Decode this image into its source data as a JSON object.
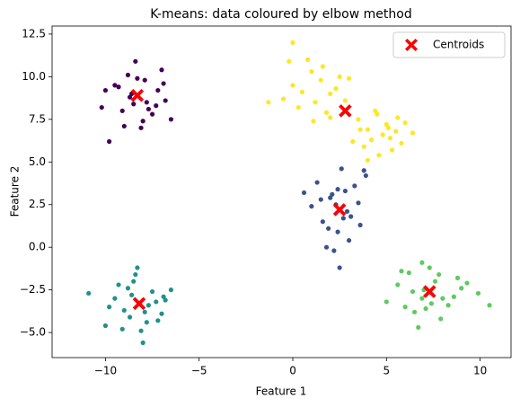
{
  "chart_data": {
    "type": "scatter",
    "title": "K-means: data coloured by elbow method",
    "xlabel": "Feature 1",
    "ylabel": "Feature 2",
    "xlim": [
      -12.85,
      11.65
    ],
    "ylim": [
      -6.47,
      12.97
    ],
    "xticks": [
      {
        "value": -10,
        "label": "−10"
      },
      {
        "value": -5,
        "label": "−5"
      },
      0,
      5,
      10
    ],
    "yticks": [
      {
        "value": -5,
        "label": "−5.0"
      },
      {
        "value": -2.5,
        "label": "−2.5"
      },
      {
        "value": 0,
        "label": "0.0"
      },
      {
        "value": 2.5,
        "label": "2.5"
      },
      {
        "value": 5,
        "label": "5.0"
      },
      {
        "value": 7.5,
        "label": "7.5"
      },
      {
        "value": 10,
        "label": "10.0"
      },
      {
        "value": 12.5,
        "label": "12.5"
      }
    ],
    "legend": "upper right",
    "series": [
      {
        "color": "#440154",
        "x": [
          -9.5,
          -8.8,
          -7.9,
          -7.2,
          -8.5,
          -9.1,
          -6.8,
          -8.0,
          -7.5,
          -10.2,
          -9.8,
          -8.3,
          -7.0,
          -6.5,
          -8.7,
          -9.3,
          -7.7,
          -8.1,
          -10.0,
          -6.9,
          -8.4,
          -7.3,
          -9.0,
          -8.6,
          -7.8
        ],
        "values": [
          9.5,
          10.1,
          9.8,
          9.2,
          8.4,
          8.0,
          8.6,
          7.4,
          7.8,
          8.2,
          6.2,
          9.9,
          10.4,
          7.5,
          8.8,
          9.4,
          8.1,
          7.0,
          9.2,
          9.6,
          10.9,
          8.3,
          7.1,
          9.0,
          8.5
        ]
      },
      {
        "color": "#21918c",
        "x": [
          -9.5,
          -8.8,
          -7.9,
          -7.2,
          -8.5,
          -9.1,
          -6.8,
          -8.0,
          -7.5,
          -10.9,
          -9.8,
          -8.3,
          -7.0,
          -6.5,
          -8.7,
          -9.3,
          -7.7,
          -8.1,
          -10.0,
          -6.9,
          -8.4,
          -7.3,
          -9.0,
          -8.6,
          -7.8
        ],
        "values": [
          -3.0,
          -2.4,
          -3.8,
          -4.3,
          -2.0,
          -4.8,
          -3.1,
          -5.6,
          -2.6,
          -2.7,
          -3.5,
          -1.2,
          -3.9,
          -2.5,
          -4.1,
          -2.2,
          -3.4,
          -4.9,
          -4.6,
          -2.9,
          -1.6,
          -3.2,
          -3.7,
          -2.8,
          -4.4
        ]
      },
      {
        "color": "#3b528b",
        "x": [
          1.3,
          2.0,
          2.8,
          3.5,
          1.6,
          2.4,
          3.1,
          1.0,
          2.2,
          3.8,
          2.6,
          1.9,
          3.3,
          2.9,
          1.5,
          2.1,
          3.0,
          2.5,
          3.6,
          1.8,
          2.3,
          2.7,
          0.6,
          3.9,
          2.4
        ],
        "values": [
          3.8,
          2.9,
          3.3,
          2.6,
          1.5,
          0.9,
          1.8,
          2.4,
          -0.2,
          4.5,
          4.6,
          1.1,
          3.6,
          2.1,
          2.8,
          3.1,
          0.4,
          -1.2,
          1.3,
          0.0,
          2.5,
          1.7,
          3.2,
          4.2,
          3.4
        ]
      },
      {
        "color": "#5ec962",
        "x": [
          5.6,
          6.2,
          6.9,
          7.6,
          8.3,
          9.0,
          6.5,
          7.3,
          8.0,
          5.0,
          10.5,
          9.9,
          6.0,
          7.0,
          7.8,
          8.6,
          6.7,
          7.4,
          8.8,
          6.4,
          7.9,
          5.8,
          9.3,
          7.1,
          6.9
        ],
        "values": [
          -2.2,
          -1.5,
          -3.0,
          -2.0,
          -3.4,
          -2.4,
          -3.8,
          -1.2,
          -3.0,
          -3.2,
          -3.4,
          -2.7,
          -3.5,
          -2.5,
          -1.6,
          -2.9,
          -4.7,
          -3.3,
          -1.8,
          -2.6,
          -4.2,
          -1.4,
          -2.1,
          -3.6,
          -0.9
        ]
      },
      {
        "color": "#fde725",
        "x": [
          0.0,
          0.5,
          1.0,
          1.5,
          2.0,
          2.5,
          -0.5,
          0.3,
          1.2,
          1.8,
          2.3,
          -1.3,
          0.8,
          1.6,
          2.8,
          3.0,
          -0.2,
          1.1,
          0.0,
          2.0,
          3.5,
          4.0,
          4.5,
          5.0,
          5.5,
          6.0,
          3.8,
          4.2,
          4.8,
          5.3,
          5.8,
          6.4,
          3.2,
          4.6,
          5.1,
          4.0,
          5.6,
          3.6,
          4.4,
          5.2
        ],
        "values": [
          9.5,
          9.1,
          10.3,
          9.8,
          9.0,
          10.0,
          8.7,
          8.2,
          8.5,
          7.9,
          9.3,
          8.5,
          11.0,
          10.6,
          8.6,
          9.9,
          10.9,
          7.4,
          12.0,
          7.6,
          7.5,
          6.9,
          7.8,
          7.2,
          6.8,
          7.3,
          5.9,
          6.3,
          6.6,
          5.7,
          6.1,
          6.7,
          6.2,
          5.4,
          7.0,
          5.1,
          7.6,
          6.9,
          8.0,
          6.4
        ]
      },
      {
        "name": "Centroids",
        "color": "#ff0000",
        "marker": "X",
        "x": [
          -8.3,
          -8.2,
          2.5,
          2.8,
          7.3
        ],
        "values": [
          8.9,
          -3.3,
          2.2,
          8.0,
          -2.6
        ]
      }
    ]
  }
}
